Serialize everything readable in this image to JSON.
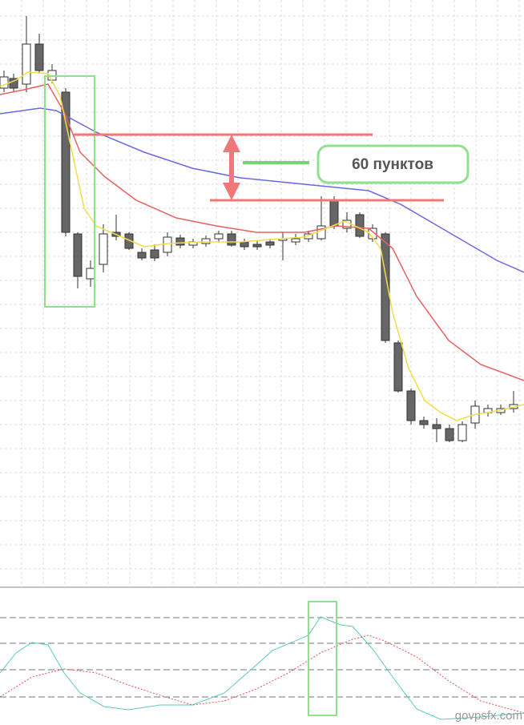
{
  "annotation": {
    "label": "60 пунктов"
  },
  "watermark": "govpsfx.com"
}
